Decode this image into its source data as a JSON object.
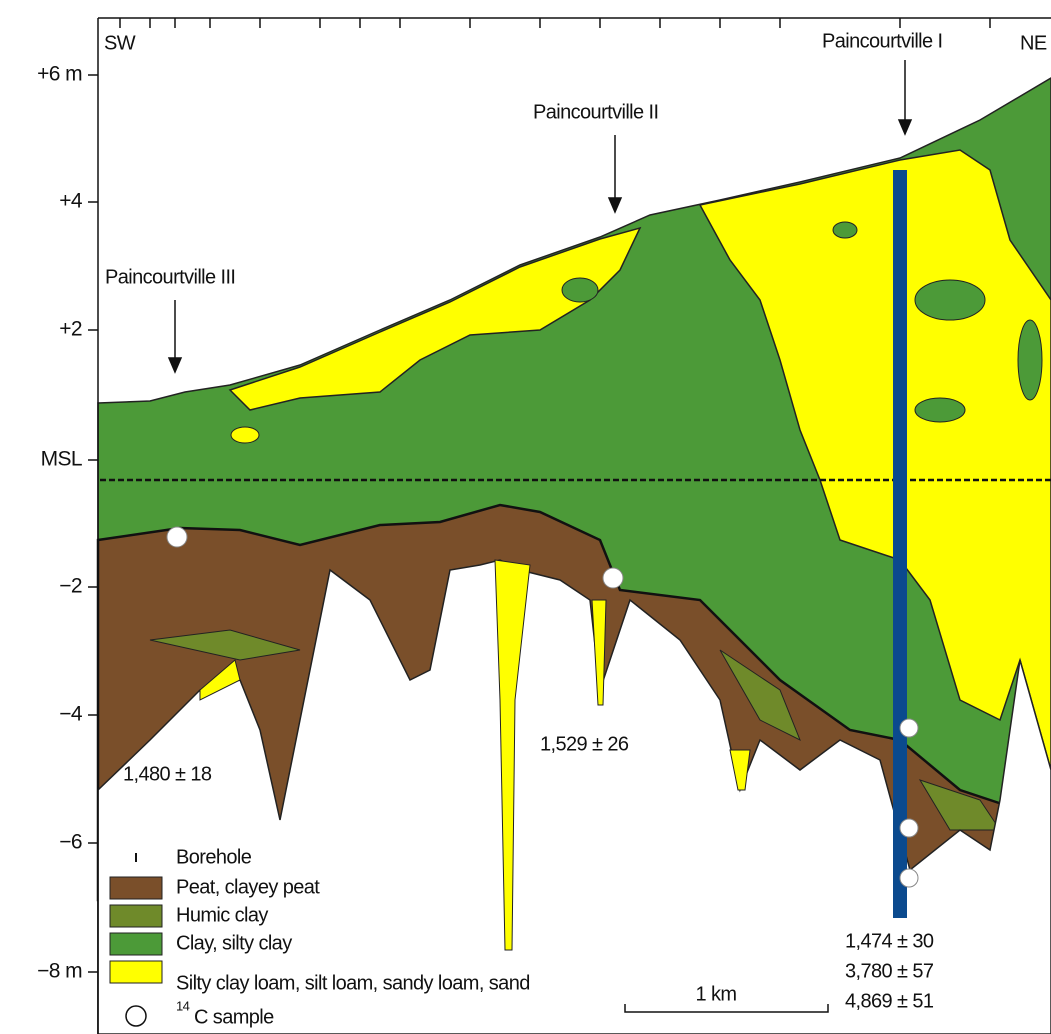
{
  "axis": {
    "labels": [
      "+6 m",
      "+4",
      "+2",
      "MSL",
      "−2",
      "−4",
      "−6",
      "−8 m"
    ]
  },
  "directions": {
    "left": "SW",
    "right": "NE"
  },
  "sites": [
    "Paincourtville III",
    "Paincourtville II",
    "Paincourtville I"
  ],
  "dates": [
    "1,480 ± 18",
    "1,529 ± 26",
    "1,474 ± 30",
    "3,780 ± 57",
    "4,869 ± 51"
  ],
  "legend": {
    "items": [
      "Borehole",
      "Peat, clayey peat",
      "Humic clay",
      "Clay, silty clay",
      "Silty clay loam, silt loam, sandy loam, sand"
    ],
    "sample": {
      "sup": "14",
      "label": "C sample"
    }
  },
  "scale_bar": "1 km"
}
